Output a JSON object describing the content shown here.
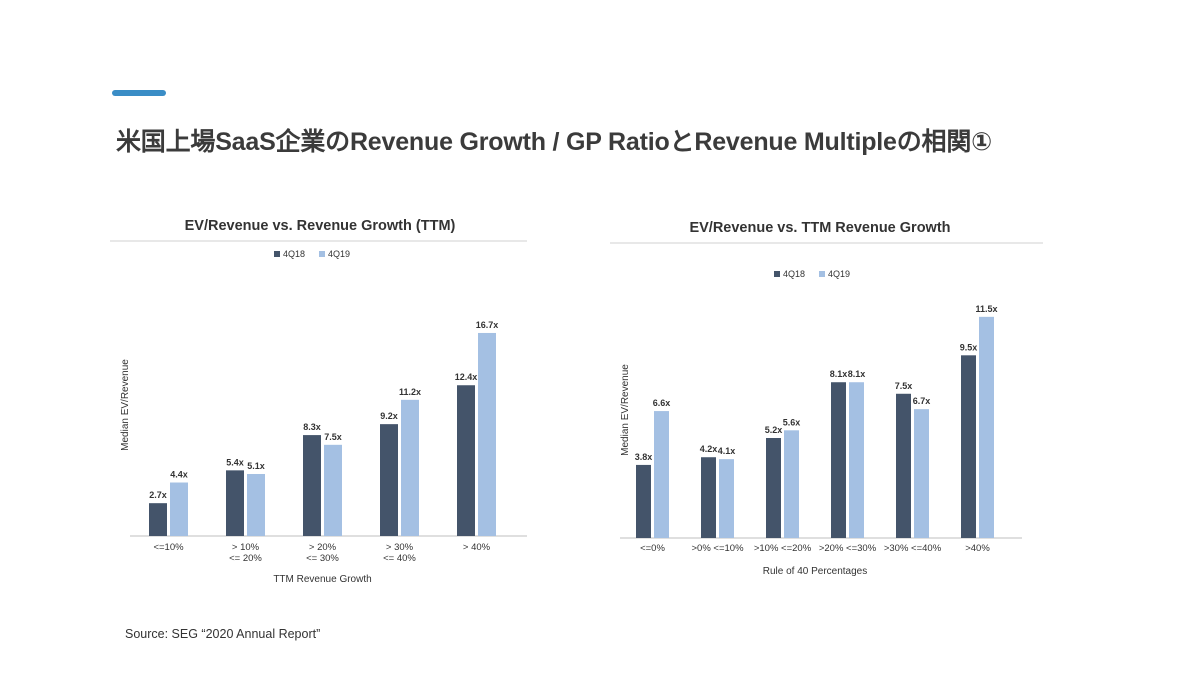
{
  "slide": {
    "title": "米国上場SaaS企業のRevenue Growth / GP RatioとRevenue Multipleの相関①",
    "source": "Source: SEG “2020 Annual Report”",
    "accent_color": "#3a8dc6"
  },
  "chart_data": [
    {
      "type": "bar",
      "title": "EV/Revenue vs. Revenue Growth (TTM)",
      "xlabel": "TTM Revenue Growth",
      "ylabel": "Median EV/Revenue",
      "legend": "top-center",
      "grid": false,
      "ylim": [
        0,
        19
      ],
      "categories": [
        [
          "<=10%"
        ],
        [
          "> 10%",
          "<= 20%"
        ],
        [
          "> 20%",
          "<= 30%"
        ],
        [
          "> 30%",
          "<= 40%"
        ],
        [
          "> 40%"
        ]
      ],
      "series": [
        {
          "name": "4Q18",
          "color": "#44546a",
          "values": [
            2.7,
            5.4,
            8.3,
            9.2,
            12.4
          ],
          "labels": [
            "2.7x",
            "5.4x",
            "8.3x",
            "9.2x",
            "12.4x"
          ]
        },
        {
          "name": "4Q19",
          "color": "#a4c0e3",
          "values": [
            4.4,
            5.1,
            7.5,
            11.2,
            16.7
          ],
          "labels": [
            "4.4x",
            "5.1x",
            "7.5x",
            "11.2x",
            "16.7x"
          ]
        }
      ]
    },
    {
      "type": "bar",
      "title": "EV/Revenue vs. TTM Revenue Growth",
      "xlabel": "Rule of 40 Percentages",
      "ylabel": "Median EV/Revenue",
      "legend": "top-center",
      "grid": false,
      "ylim": [
        0,
        13
      ],
      "categories": [
        [
          "<=0%"
        ],
        [
          ">0% <=10%"
        ],
        [
          ">10% <=20%"
        ],
        [
          ">20% <=30%"
        ],
        [
          ">30% <=40%"
        ],
        [
          ">40%"
        ]
      ],
      "series": [
        {
          "name": "4Q18",
          "color": "#44546a",
          "values": [
            3.8,
            4.2,
            5.2,
            8.1,
            7.5,
            9.5
          ],
          "labels": [
            "3.8x",
            "4.2x",
            "5.2x",
            "8.1x",
            "7.5x",
            "9.5x"
          ]
        },
        {
          "name": "4Q19",
          "color": "#a4c0e3",
          "values": [
            6.6,
            4.1,
            5.6,
            8.1,
            6.7,
            11.5
          ],
          "labels": [
            "6.6x",
            "4.1x",
            "5.6x",
            "8.1x",
            "6.7x",
            "11.5x"
          ]
        }
      ]
    }
  ]
}
